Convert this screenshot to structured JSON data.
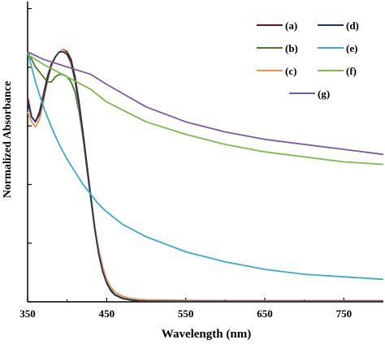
{
  "chart_data": {
    "type": "line",
    "xlabel": "Wavelength (nm)",
    "ylabel": "Normalized Absorbance",
    "xlim": [
      350,
      800
    ],
    "ylim": [
      0,
      1.0
    ],
    "x_ticks": [
      350,
      450,
      550,
      650,
      750
    ],
    "y_tick_count": 6,
    "grid": false,
    "legend_position": "top-right",
    "series": [
      {
        "name": "(a)",
        "color": "#6b1418",
        "x": [
          350,
          355,
          360,
          365,
          370,
          375,
          380,
          385,
          390,
          395,
          400,
          405,
          410,
          415,
          420,
          425,
          430,
          435,
          440,
          445,
          450,
          455,
          460,
          470,
          480,
          490,
          500,
          550,
          600,
          650,
          700,
          750,
          800
        ],
        "y": [
          0.82,
          0.74,
          0.72,
          0.76,
          0.83,
          0.9,
          0.95,
          0.98,
          1.0,
          1.01,
          1.0,
          0.97,
          0.9,
          0.8,
          0.68,
          0.55,
          0.42,
          0.3,
          0.2,
          0.13,
          0.08,
          0.05,
          0.03,
          0.015,
          0.008,
          0.004,
          0.003,
          0.002,
          0.002,
          0.002,
          0.002,
          0.002,
          0.002
        ]
      },
      {
        "name": "(b)",
        "color": "#4a7a2a",
        "x": [
          350,
          355,
          360,
          365,
          370,
          375,
          380,
          385,
          390,
          395,
          400,
          405,
          410,
          415,
          420,
          425,
          430,
          435,
          440,
          445,
          450,
          455,
          460,
          470,
          480,
          490,
          500,
          550,
          600,
          650,
          700,
          750,
          800
        ],
        "y": [
          1.0,
          0.97,
          0.94,
          0.92,
          0.9,
          0.88,
          0.88,
          0.9,
          0.91,
          0.91,
          0.9,
          0.88,
          0.84,
          0.76,
          0.66,
          0.54,
          0.42,
          0.3,
          0.2,
          0.13,
          0.08,
          0.05,
          0.03,
          0.015,
          0.008,
          0.005,
          0.004,
          0.003,
          0.003,
          0.003,
          0.003,
          0.003,
          0.003
        ]
      },
      {
        "name": "(c)",
        "color": "#f09050",
        "x": [
          350,
          355,
          360,
          365,
          370,
          375,
          380,
          385,
          390,
          395,
          400,
          405,
          410,
          415,
          420,
          425,
          430,
          435,
          440,
          445,
          450,
          455,
          460,
          470,
          480,
          490,
          500,
          550,
          600,
          650,
          700,
          750,
          800
        ],
        "y": [
          0.76,
          0.72,
          0.7,
          0.73,
          0.8,
          0.88,
          0.94,
          0.98,
          1.0,
          1.01,
          0.99,
          0.95,
          0.88,
          0.78,
          0.66,
          0.53,
          0.41,
          0.3,
          0.21,
          0.14,
          0.09,
          0.06,
          0.04,
          0.022,
          0.014,
          0.01,
          0.008,
          0.006,
          0.005,
          0.005,
          0.005,
          0.005,
          0.005
        ]
      },
      {
        "name": "(d)",
        "color": "#1f3560",
        "x": [
          350,
          355,
          360,
          365,
          370,
          375,
          380,
          385,
          390,
          395,
          400,
          405,
          410,
          415,
          420,
          425,
          430,
          435,
          440,
          445,
          450,
          455,
          460,
          470,
          480,
          490,
          500,
          550,
          600,
          650,
          700,
          750,
          800
        ],
        "y": [
          0.8,
          0.74,
          0.72,
          0.75,
          0.82,
          0.89,
          0.95,
          0.98,
          1.0,
          1.0,
          0.99,
          0.96,
          0.89,
          0.79,
          0.67,
          0.54,
          0.41,
          0.29,
          0.19,
          0.12,
          0.075,
          0.045,
          0.028,
          0.013,
          0.007,
          0.004,
          0.003,
          0.002,
          0.002,
          0.002,
          0.002,
          0.002,
          0.002
        ]
      },
      {
        "name": "(e)",
        "color": "#3aaad0",
        "x": [
          350,
          360,
          370,
          380,
          390,
          400,
          410,
          420,
          430,
          440,
          450,
          470,
          500,
          550,
          600,
          650,
          700,
          750,
          800
        ],
        "y": [
          1.0,
          0.88,
          0.78,
          0.7,
          0.63,
          0.57,
          0.52,
          0.47,
          0.43,
          0.39,
          0.36,
          0.31,
          0.26,
          0.2,
          0.16,
          0.13,
          0.11,
          0.1,
          0.09
        ]
      },
      {
        "name": "(f)",
        "color": "#7cba4a",
        "x": [
          350,
          370,
          400,
          430,
          450,
          500,
          550,
          600,
          650,
          700,
          750,
          800
        ],
        "y": [
          0.99,
          0.95,
          0.9,
          0.85,
          0.8,
          0.72,
          0.67,
          0.63,
          0.6,
          0.58,
          0.56,
          0.55
        ]
      },
      {
        "name": "(g)",
        "color": "#7a5aa8",
        "x": [
          350,
          370,
          400,
          430,
          450,
          500,
          550,
          600,
          650,
          700,
          750,
          800
        ],
        "y": [
          1.0,
          0.97,
          0.94,
          0.91,
          0.87,
          0.78,
          0.72,
          0.68,
          0.65,
          0.63,
          0.61,
          0.59
        ]
      }
    ]
  }
}
